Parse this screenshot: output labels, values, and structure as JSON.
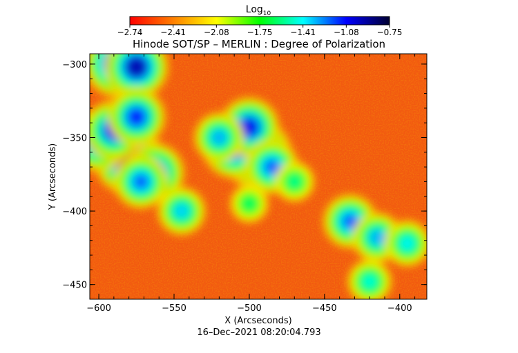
{
  "chart_data": {
    "type": "heatmap",
    "title": "Hinode SOT/SP – MERLIN : Degree of Polarization",
    "colorbar": {
      "label": "Log",
      "label_subscript": "10",
      "ticks": [
        "−2.74",
        "−2.41",
        "−2.08",
        "−1.75",
        "−1.41",
        "−1.08",
        "−0.75"
      ],
      "range": [
        -2.74,
        -0.75
      ],
      "colormap": [
        "#ff0000",
        "#ff7f00",
        "#ffff00",
        "#00ff00",
        "#00ffff",
        "#0000ff",
        "#000030"
      ]
    },
    "xlabel": "X (Arcseconds)",
    "ylabel": "Y (Arcseconds)",
    "xlim": [
      -606,
      -382
    ],
    "ylim": [
      -460,
      -293
    ],
    "xticks": [
      {
        "value": -600,
        "label": "−600"
      },
      {
        "value": -550,
        "label": "−550"
      },
      {
        "value": -500,
        "label": "−500"
      },
      {
        "value": -450,
        "label": "−450"
      },
      {
        "value": -400,
        "label": "−400"
      }
    ],
    "yticks": [
      {
        "value": -300,
        "label": "−300"
      },
      {
        "value": -350,
        "label": "−350"
      },
      {
        "value": -400,
        "label": "−400"
      },
      {
        "value": -450,
        "label": "−450"
      }
    ],
    "features": [
      {
        "x": -580,
        "y": -365,
        "level": -0.8
      },
      {
        "x": -588,
        "y": -300,
        "level": -0.9
      },
      {
        "x": -575,
        "y": -302,
        "level": -0.95
      },
      {
        "x": -600,
        "y": -352,
        "level": -1.0
      },
      {
        "x": -590,
        "y": -345,
        "level": -1.05
      },
      {
        "x": -575,
        "y": -336,
        "level": -1.1
      },
      {
        "x": -563,
        "y": -374,
        "level": -1.05
      },
      {
        "x": -572,
        "y": -380,
        "level": -1.2
      },
      {
        "x": -495,
        "y": -361,
        "level": -0.8
      },
      {
        "x": -510,
        "y": -356,
        "level": -0.95
      },
      {
        "x": -500,
        "y": -343,
        "level": -1.05
      },
      {
        "x": -485,
        "y": -370,
        "level": -1.2
      },
      {
        "x": -520,
        "y": -350,
        "level": -1.3
      },
      {
        "x": -433,
        "y": -407,
        "level": -1.2
      },
      {
        "x": -415,
        "y": -418,
        "level": -1.3
      },
      {
        "x": -395,
        "y": -422,
        "level": -1.4
      },
      {
        "x": -420,
        "y": -448,
        "level": -1.45
      },
      {
        "x": -545,
        "y": -400,
        "level": -1.35
      },
      {
        "x": -470,
        "y": -380,
        "level": -1.55
      },
      {
        "x": -500,
        "y": -395,
        "level": -1.6
      }
    ],
    "grid": false
  },
  "footer": {
    "timestamp": "16–Dec–2021 08:20:04.793"
  }
}
